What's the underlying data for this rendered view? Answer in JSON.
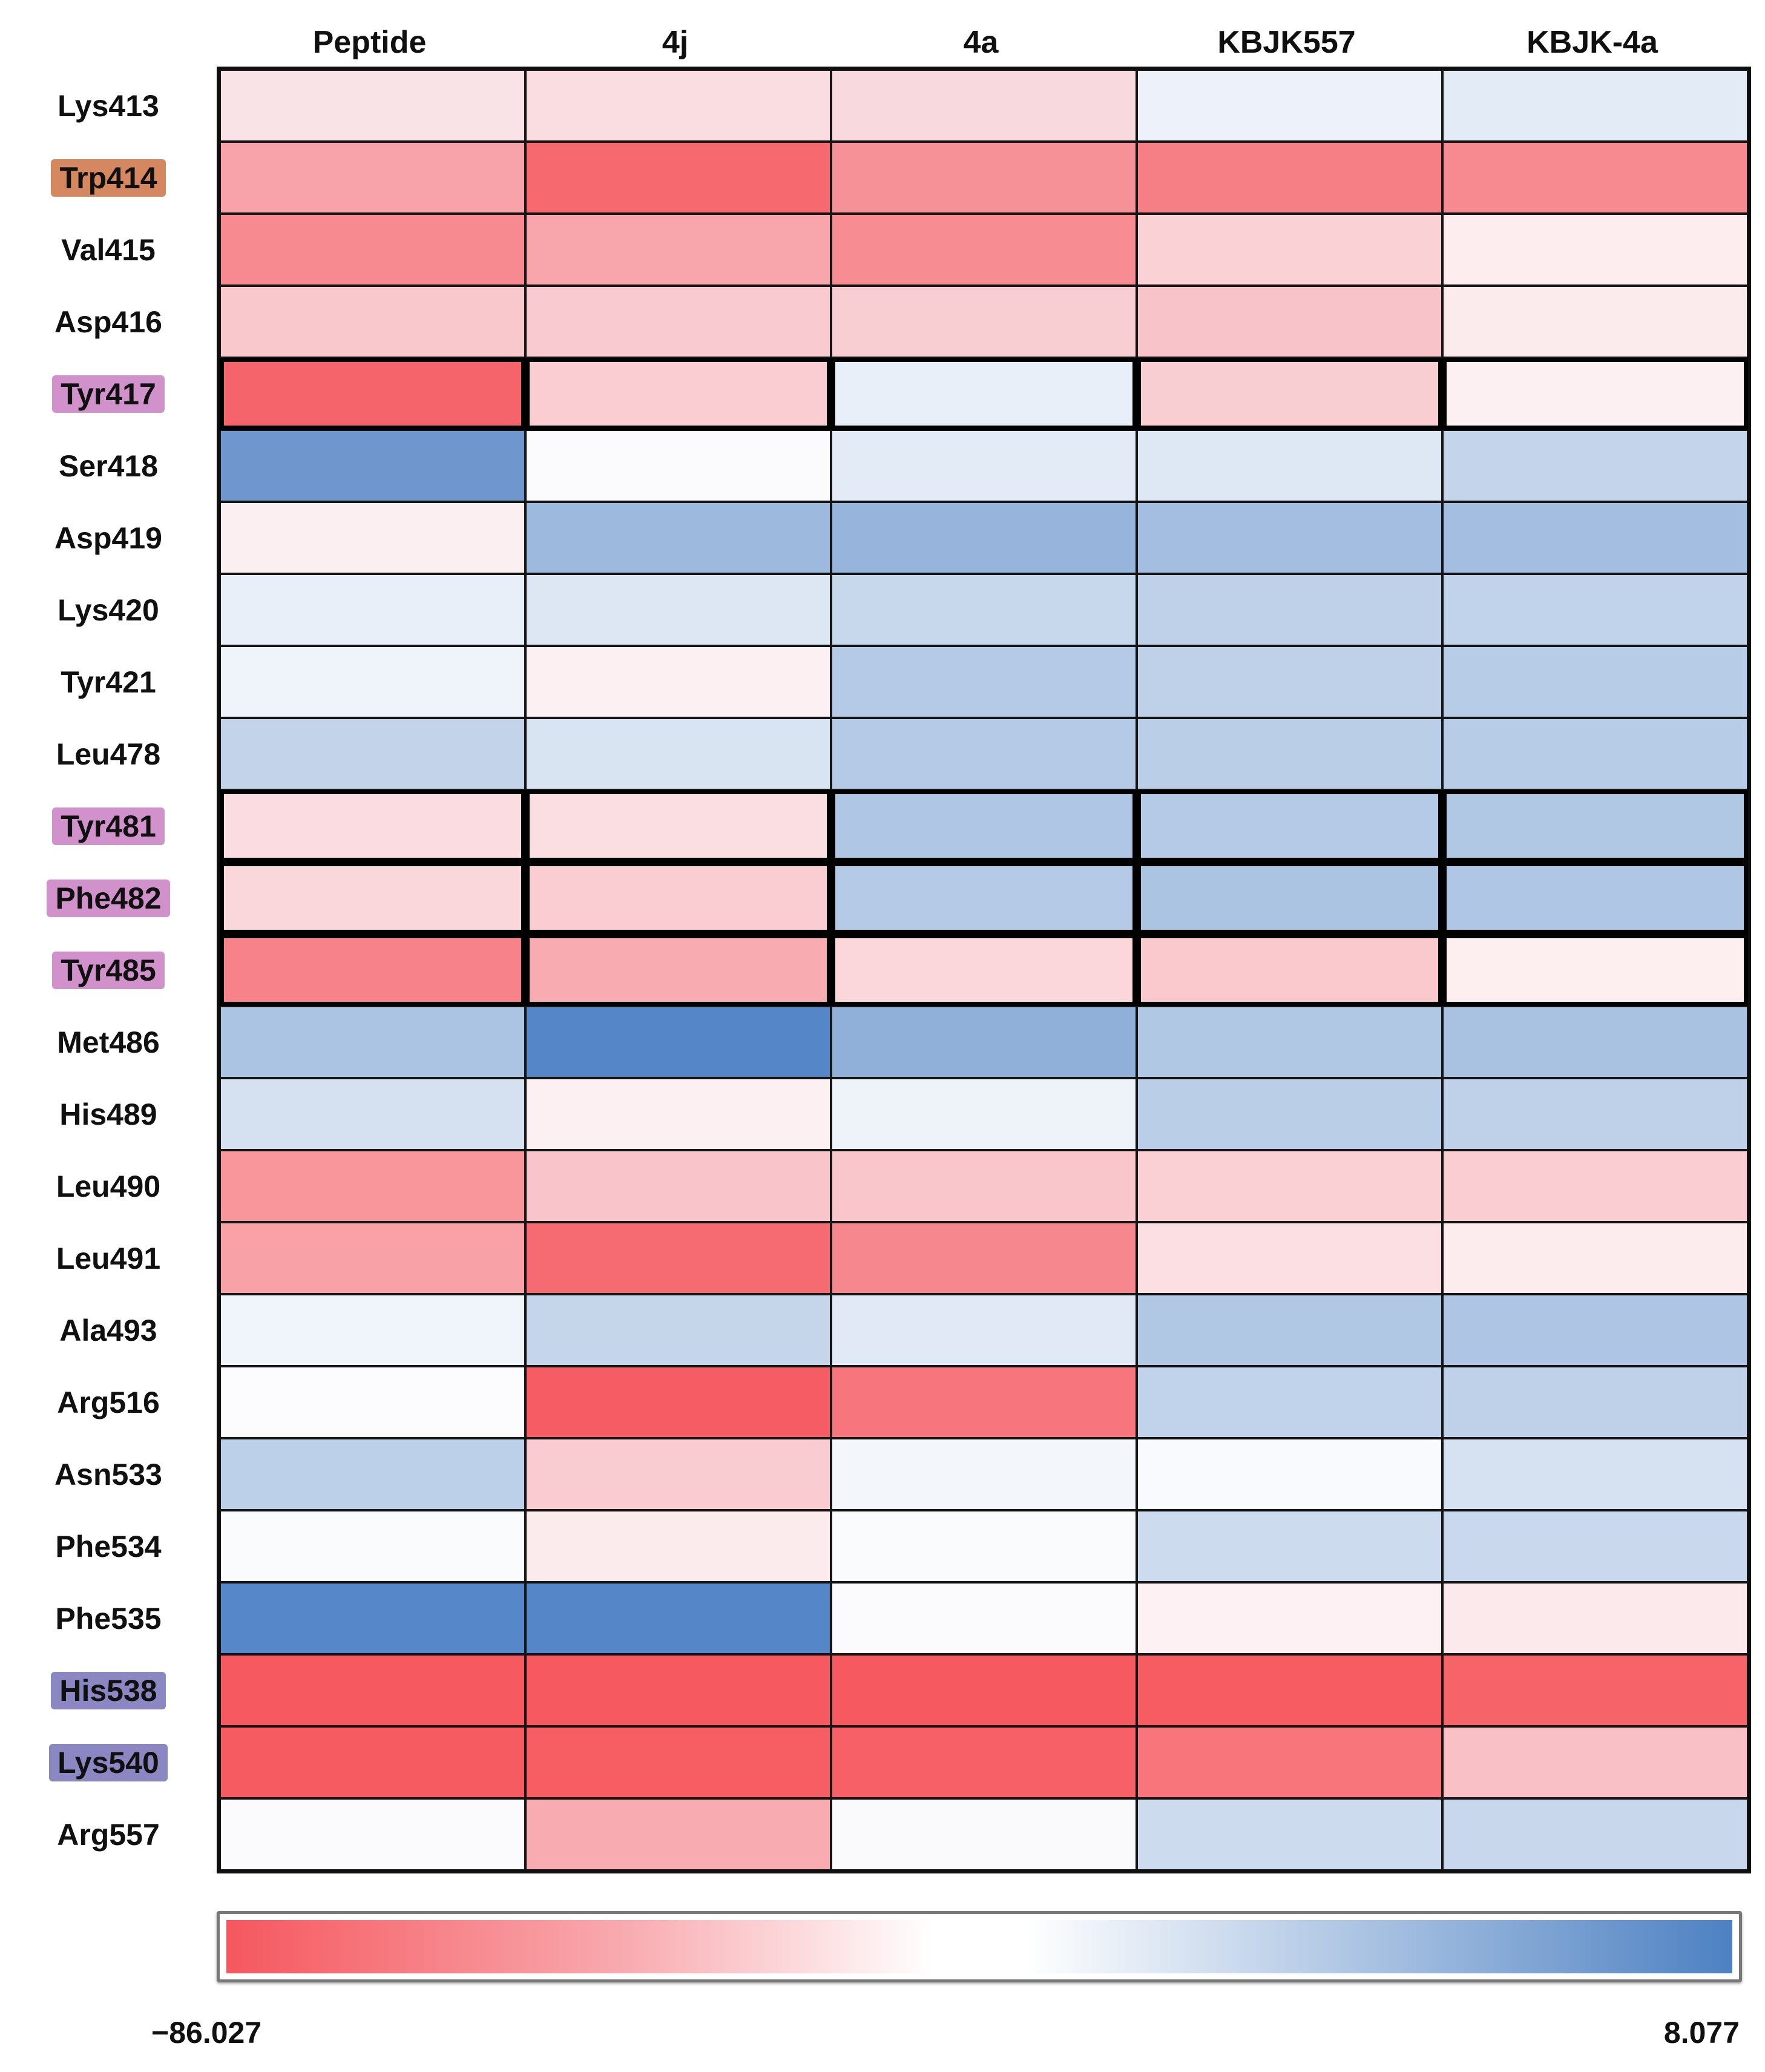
{
  "chart_data": {
    "type": "heatmap",
    "columns": [
      "Peptide",
      "4j",
      "4a",
      "KBJK557",
      "KBJK-4a"
    ],
    "rows": [
      {
        "label": "Lys413",
        "highlight": "none",
        "thick": false,
        "cell_colors": [
          "#f9e3e7",
          "#f9dde1",
          "#f8d9dd",
          "#edf2fa",
          "#e2ebf6"
        ]
      },
      {
        "label": "Trp414",
        "highlight": "orange",
        "thick": false,
        "cell_colors": [
          "#f7a3a9",
          "#f5696f",
          "#f79198",
          "#f67e85",
          "#f78990"
        ]
      },
      {
        "label": "Val415",
        "highlight": "none",
        "thick": false,
        "cell_colors": [
          "#f78a90",
          "#f8a6ac",
          "#f78d93",
          "#fad2d6",
          "#fdedef"
        ]
      },
      {
        "label": "Asp416",
        "highlight": "none",
        "thick": false,
        "cell_colors": [
          "#f9c8cd",
          "#f9cbd0",
          "#f9ced2",
          "#f8c4c9",
          "#fcebed"
        ]
      },
      {
        "label": "Tyr417",
        "highlight": "purple",
        "thick": true,
        "cell_colors": [
          "#f6646b",
          "#f9cdd2",
          "#e9eff8",
          "#f9ced3",
          "#fdf0f2"
        ]
      },
      {
        "label": "Ser418",
        "highlight": "none",
        "thick": false,
        "cell_colors": [
          "#6f97cd",
          "#fbfbfd",
          "#e3ebf6",
          "#dee8f4",
          "#c4d5eb"
        ]
      },
      {
        "label": "Asp419",
        "highlight": "none",
        "thick": false,
        "cell_colors": [
          "#fceff1",
          "#9dbade",
          "#97b5dc",
          "#a4bee1",
          "#a4bee1"
        ]
      },
      {
        "label": "Lys420",
        "highlight": "none",
        "thick": false,
        "cell_colors": [
          "#e9eff8",
          "#dde7f4",
          "#c7d7ec",
          "#bfd1e9",
          "#c1d3ea"
        ]
      },
      {
        "label": "Tyr421",
        "highlight": "none",
        "thick": false,
        "cell_colors": [
          "#eff4fb",
          "#fcf0f2",
          "#b4cae6",
          "#bfd1e9",
          "#b7cce7"
        ]
      },
      {
        "label": "Leu478",
        "highlight": "none",
        "thick": false,
        "cell_colors": [
          "#c3d4ea",
          "#d9e4f2",
          "#b4cae6",
          "#bacee8",
          "#b7cce7"
        ]
      },
      {
        "label": "Tyr481",
        "highlight": "purple",
        "thick": true,
        "cell_colors": [
          "#fbdce0",
          "#fbdee1",
          "#afc6e4",
          "#b4cae6",
          "#b1c8e5"
        ]
      },
      {
        "label": "Phe482",
        "highlight": "purple",
        "thick": true,
        "cell_colors": [
          "#fad7db",
          "#f9cdd2",
          "#b4cae6",
          "#abc4e2",
          "#afc6e4"
        ]
      },
      {
        "label": "Tyr485",
        "highlight": "purple",
        "thick": true,
        "cell_colors": [
          "#f7828a",
          "#f8acb1",
          "#fbd6da",
          "#f9c9ce",
          "#fdeef0"
        ]
      },
      {
        "label": "Met486",
        "highlight": "none",
        "thick": false,
        "cell_colors": [
          "#acc4e3",
          "#5586c7",
          "#90b0da",
          "#b1c8e5",
          "#a9c2e2"
        ]
      },
      {
        "label": "His489",
        "highlight": "none",
        "thick": false,
        "cell_colors": [
          "#d5e1f1",
          "#fcf0f2",
          "#eef3fa",
          "#bacee8",
          "#bed1e9"
        ]
      },
      {
        "label": "Leu490",
        "highlight": "none",
        "thick": false,
        "cell_colors": [
          "#f8969c",
          "#f9c5ca",
          "#f9c6cb",
          "#fad0d5",
          "#f9cdd2"
        ]
      },
      {
        "label": "Leu491",
        "highlight": "none",
        "thick": false,
        "cell_colors": [
          "#f8a1a7",
          "#f66b71",
          "#f7878e",
          "#fbdfe2",
          "#fcecee"
        ]
      },
      {
        "label": "Ala493",
        "highlight": "none",
        "thick": false,
        "cell_colors": [
          "#f0f4fb",
          "#c5d6eb",
          "#e0e9f5",
          "#b1c8e5",
          "#aec6e4"
        ]
      },
      {
        "label": "Arg516",
        "highlight": "none",
        "thick": false,
        "cell_colors": [
          "#fcfcfe",
          "#f55c63",
          "#f7767d",
          "#c1d3ea",
          "#bed1e9"
        ]
      },
      {
        "label": "Asn533",
        "highlight": "none",
        "thick": false,
        "cell_colors": [
          "#bdd0e9",
          "#f9ccd1",
          "#f3f6fb",
          "#f9fafd",
          "#d6e1f1"
        ]
      },
      {
        "label": "Phe534",
        "highlight": "none",
        "thick": false,
        "cell_colors": [
          "#fafbfd",
          "#fcebed",
          "#fafbfd",
          "#cddbef",
          "#c9d8ed"
        ]
      },
      {
        "label": "Phe535",
        "highlight": "none",
        "thick": false,
        "cell_colors": [
          "#5687c8",
          "#5586c7",
          "#fbfbfd",
          "#fdf1f3",
          "#fce9ec"
        ]
      },
      {
        "label": "His538",
        "highlight": "slate",
        "thick": false,
        "cell_colors": [
          "#f6595f",
          "#f65a60",
          "#f65a60",
          "#f65c62",
          "#f6646a"
        ]
      },
      {
        "label": "Lys540",
        "highlight": "slate",
        "thick": false,
        "cell_colors": [
          "#f65b61",
          "#f65e64",
          "#f66066",
          "#f7757b",
          "#f9c0c6"
        ]
      },
      {
        "label": "Arg557",
        "highlight": "none",
        "thick": false,
        "cell_colors": [
          "#fbfbfd",
          "#f8abb1",
          "#fafafd",
          "#cddbef",
          "#c8d7ec"
        ]
      }
    ],
    "scale": {
      "min": -86.027,
      "max": 8.077,
      "min_label": "−86.027",
      "max_label": "8.077",
      "gradient_stops": [
        "#f5575e 0%",
        "#f8a9ae 26%",
        "#ffffff 47%",
        "#ffffff 53%",
        "#a9c2e2 76%",
        "#4d81c2 100%"
      ]
    },
    "highlight_colors": {
      "orange": "#d5875f",
      "purple": "#d191cb",
      "slate": "#8a87c3"
    }
  }
}
